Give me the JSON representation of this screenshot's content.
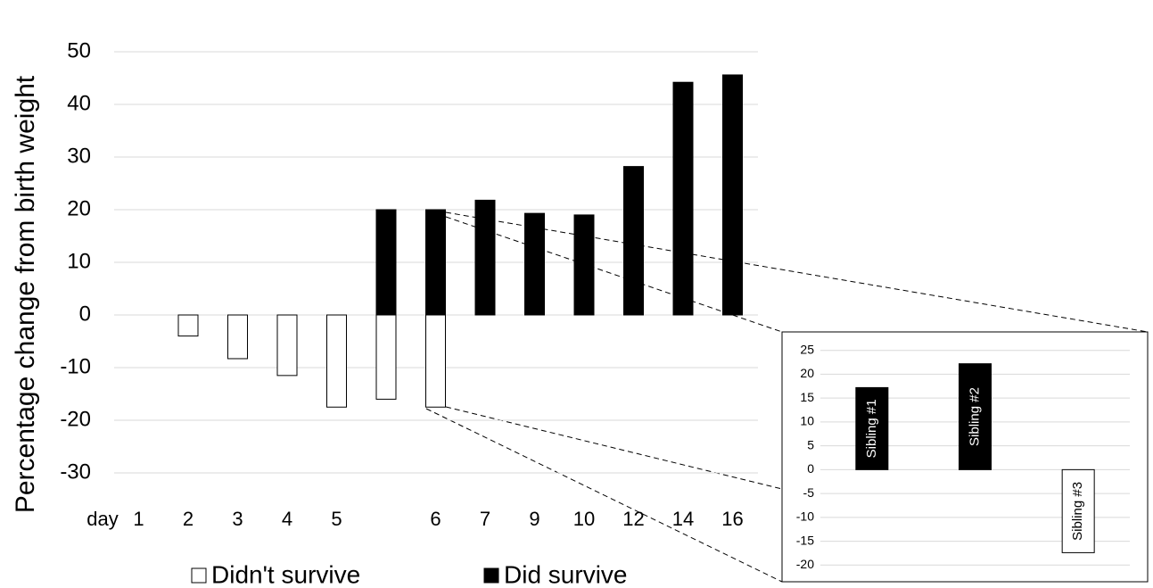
{
  "chart_data": [
    {
      "type": "bar",
      "y_label": "Percentage change from birth weight",
      "x_label": "day",
      "categories": [
        "1",
        "2",
        "3",
        "4",
        "5",
        null,
        "6",
        "7",
        "9",
        "10",
        "12",
        "14",
        "16"
      ],
      "series": [
        {
          "name": "Didn't survive",
          "color": "#ffffff",
          "values": [
            null,
            -4,
            -8.3,
            -11.5,
            -17.5,
            -16,
            -17.5,
            null,
            null,
            null,
            null,
            null,
            null
          ]
        },
        {
          "name": "Did survive",
          "color": "#000000",
          "values": [
            null,
            null,
            null,
            null,
            null,
            20,
            20,
            21.8,
            19.3,
            19,
            28.2,
            44.2,
            45.6
          ]
        }
      ],
      "ylim": [
        -35,
        55
      ],
      "yticks": [
        -30,
        -20,
        -10,
        0,
        10,
        20,
        30,
        40,
        50
      ],
      "grid": true
    },
    {
      "type": "bar",
      "categories": [
        "Sibling #1",
        "Sibling #2",
        "Sibling #3"
      ],
      "values": [
        17.2,
        22.2,
        -17.4
      ],
      "colors": [
        "#000000",
        "#000000",
        "#ffffff"
      ],
      "ylim": [
        -22,
        27
      ],
      "yticks": [
        -20,
        -15,
        -10,
        -5,
        0,
        5,
        10,
        15,
        20,
        25
      ],
      "grid": true
    }
  ]
}
